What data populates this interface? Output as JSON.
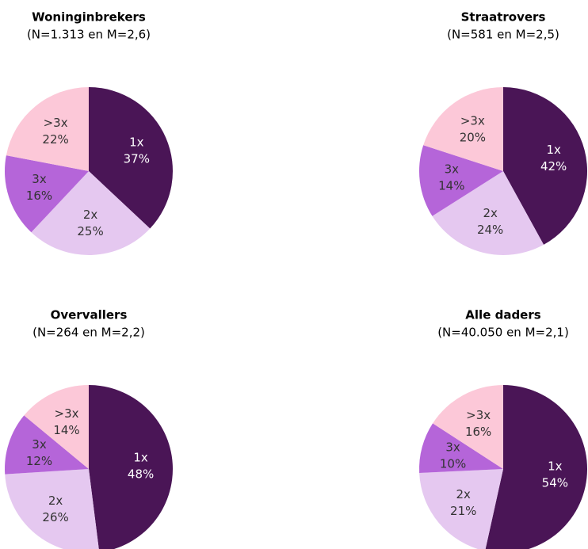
{
  "chart_data": [
    {
      "type": "pie",
      "title": "Woninginbrekers",
      "subtitle": "(N=1.313 en M=2,6)",
      "categories": [
        "1x",
        "2x",
        "3x",
        ">3x"
      ],
      "values": [
        37,
        25,
        16,
        22
      ],
      "value_labels": [
        "37%",
        "25%",
        "16%",
        "22%"
      ],
      "colors": [
        "#4a1556",
        "#e5c8f0",
        "#b565d9",
        "#fcc8d8"
      ]
    },
    {
      "type": "pie",
      "title": "Straatrovers",
      "subtitle": "(N=581 en M=2,5)",
      "categories": [
        "1x",
        "2x",
        "3x",
        ">3x"
      ],
      "values": [
        42,
        24,
        14,
        20
      ],
      "value_labels": [
        "42%",
        "24%",
        "14%",
        "20%"
      ],
      "colors": [
        "#4a1556",
        "#e5c8f0",
        "#b565d9",
        "#fcc8d8"
      ]
    },
    {
      "type": "pie",
      "title": "Overvallers",
      "subtitle": "(N=264 en M=2,2)",
      "categories": [
        "1x",
        "2x",
        "3x",
        ">3x"
      ],
      "values": [
        48,
        26,
        12,
        14
      ],
      "value_labels": [
        "48%",
        "26%",
        "12%",
        "14%"
      ],
      "colors": [
        "#4a1556",
        "#e5c8f0",
        "#b565d9",
        "#fcc8d8"
      ]
    },
    {
      "type": "pie",
      "title": "Alle daders",
      "subtitle": "(N=40.050 en M=2,1)",
      "categories": [
        "1x",
        "2x",
        "3x",
        ">3x"
      ],
      "values": [
        54,
        21,
        10,
        16
      ],
      "value_labels": [
        "54%",
        "21%",
        "10%",
        "16%"
      ],
      "colors": [
        "#4a1556",
        "#e5c8f0",
        "#b565d9",
        "#fcc8d8"
      ]
    }
  ]
}
